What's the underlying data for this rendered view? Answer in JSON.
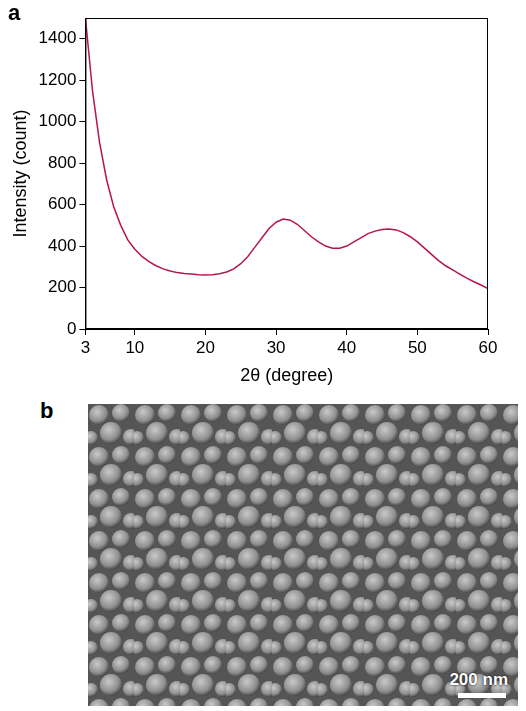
{
  "chart_data": {
    "type": "line",
    "panel_label": "a",
    "x_label": "2θ (degree)",
    "y_label": "Intensity (count)",
    "x": [
      3,
      4,
      5,
      6,
      7,
      8,
      9,
      10,
      11,
      12,
      13,
      14,
      15,
      16,
      17,
      18,
      19,
      20,
      21,
      22,
      23,
      24,
      25,
      26,
      27,
      28,
      29,
      30,
      31,
      32,
      33,
      34,
      35,
      36,
      37,
      38,
      39,
      40,
      41,
      42,
      43,
      44,
      45,
      46,
      47,
      48,
      49,
      50,
      51,
      52,
      53,
      54,
      55,
      56,
      57,
      58,
      59,
      60
    ],
    "values": [
      1500,
      1150,
      900,
      720,
      590,
      500,
      430,
      385,
      350,
      325,
      305,
      290,
      280,
      272,
      268,
      265,
      262,
      260,
      262,
      266,
      275,
      290,
      315,
      350,
      395,
      440,
      485,
      515,
      530,
      525,
      505,
      475,
      445,
      420,
      400,
      390,
      390,
      400,
      420,
      440,
      460,
      472,
      480,
      482,
      478,
      465,
      445,
      420,
      390,
      360,
      330,
      305,
      285,
      265,
      245,
      228,
      212,
      195
    ],
    "color": "#b5174a",
    "xlim": [
      3,
      60
    ],
    "xticks": [
      3,
      10,
      20,
      30,
      40,
      50,
      60
    ],
    "ylim": [
      0,
      1500
    ],
    "yticks": [
      0,
      200,
      400,
      600,
      800,
      1000,
      1200,
      1400
    ],
    "grid": false,
    "line_style": "solid",
    "marker": "none"
  },
  "image_panel": {
    "panel_label": "b",
    "scale_bar": "200 nm"
  }
}
